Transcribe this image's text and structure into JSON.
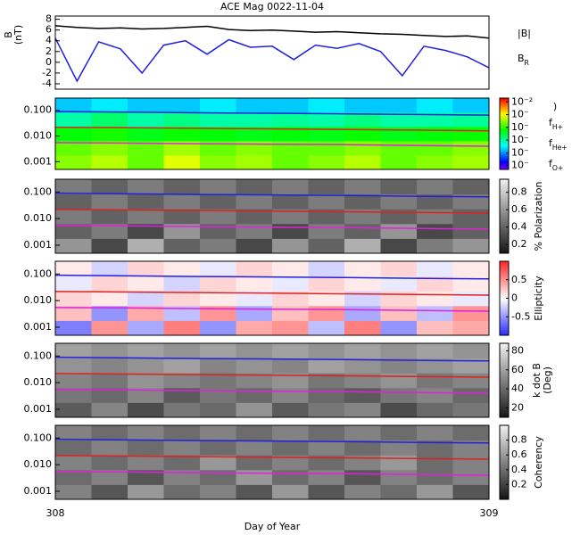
{
  "chart_data": [
    {
      "type": "line",
      "title": "ACE Mag 0022-11-04",
      "ylabel": [
        "B",
        "(nT)"
      ],
      "x": [
        308.0,
        308.05,
        308.1,
        308.15,
        308.2,
        308.25,
        308.3,
        308.35,
        308.4,
        308.45,
        308.5,
        308.55,
        308.6,
        308.65,
        308.7,
        308.75,
        308.8,
        308.85,
        308.9,
        308.95,
        309.0
      ],
      "xlim": [
        308,
        309
      ],
      "ylim": [
        -5,
        8.6
      ],
      "yticks": [
        -4,
        -2,
        0,
        2,
        4,
        6,
        8
      ],
      "series": [
        {
          "name": "|B|",
          "color": "#000000",
          "values": [
            6.8,
            6.5,
            6.3,
            6.4,
            6.2,
            6.3,
            6.5,
            6.7,
            6.1,
            5.9,
            6.0,
            5.8,
            5.6,
            5.7,
            5.5,
            5.3,
            5.2,
            5.0,
            4.8,
            4.9,
            4.5
          ]
        },
        {
          "name": "BR",
          "color": "#2020e0",
          "values": [
            4.5,
            -3.5,
            3.8,
            2.5,
            -2.0,
            3.2,
            4.0,
            1.5,
            4.2,
            2.8,
            3.0,
            0.5,
            3.2,
            2.6,
            3.5,
            2.0,
            -2.5,
            3.0,
            2.2,
            1.0,
            -1.0
          ]
        }
      ]
    },
    {
      "type": "heatmap",
      "colormap": "rainbow",
      "zlog": true,
      "zlim": [
        5e-08,
        0.02
      ],
      "zlabel": ")",
      "zticks": [
        {
          "value": 0.01,
          "label": "10⁻²"
        },
        {
          "value": 0.001,
          "label": "10⁻"
        },
        {
          "value": 0.0001,
          "label": "10⁻"
        },
        {
          "value": 1e-05,
          "label": "10⁻"
        },
        {
          "value": 1e-06,
          "label": "10⁻"
        },
        {
          "value": 1e-07,
          "label": "10⁻"
        }
      ],
      "xlim": [
        308,
        309
      ],
      "ylim": [
        0.0005,
        0.3
      ],
      "ylog": true,
      "legend": true,
      "yticks": [
        {
          "value": 0.001,
          "label": "0.001"
        },
        {
          "value": 0.01,
          "label": "0.010"
        },
        {
          "value": 0.1,
          "label": "0.100"
        }
      ],
      "z": [
        [
          0.0003,
          0.0005,
          0.0002,
          0.0008,
          0.0003,
          0.0004,
          0.0002,
          0.0003,
          0.0005,
          0.0002,
          0.0003,
          0.0004
        ],
        [
          0.0002,
          0.0003,
          0.0002,
          0.0004,
          0.0002,
          0.0003,
          0.0002,
          0.0002,
          0.0003,
          0.0002,
          0.0002,
          0.0003
        ],
        [
          6e-05,
          8e-05,
          5e-05,
          7e-05,
          6e-05,
          5e-05,
          6e-05,
          5e-05,
          7e-05,
          5e-05,
          6e-05,
          7e-05
        ],
        [
          1e-05,
          2e-05,
          1e-05,
          1.5e-05,
          1e-05,
          1e-05,
          1.2e-05,
          1e-05,
          1.5e-05,
          1e-05,
          1e-05,
          1.2e-05
        ],
        [
          2e-06,
          3e-06,
          2e-06,
          2e-06,
          3e-06,
          2e-06,
          2e-06,
          3e-06,
          2e-06,
          2e-06,
          3e-06,
          2e-06
        ]
      ],
      "x": [
        308.0,
        308.17,
        308.33,
        308.5,
        308.67,
        308.83,
        309.0
      ],
      "series": [
        {
          "name": "fH+",
          "color": "#2020e0",
          "values": [
            0.09,
            0.085,
            0.08,
            0.077,
            0.073,
            0.069,
            0.065
          ]
        },
        {
          "name": "fHe+",
          "color": "#e02020",
          "values": [
            0.022,
            0.021,
            0.02,
            0.019,
            0.018,
            0.017,
            0.016
          ]
        },
        {
          "name": "fO+",
          "color": "#e020e0",
          "values": [
            0.0055,
            0.0053,
            0.005,
            0.0048,
            0.0046,
            0.0043,
            0.004
          ]
        }
      ]
    },
    {
      "type": "heatmap",
      "colormap": "gray",
      "zlim": [
        0.1,
        0.95
      ],
      "zlabel": "% Polarization",
      "zticks": [
        0.2,
        0.4,
        0.6,
        0.8
      ],
      "xlim": [
        308,
        309
      ],
      "ylim": [
        0.0005,
        0.3
      ],
      "ylog": true,
      "yticks": [
        {
          "value": 0.001,
          "label": "0.001"
        },
        {
          "value": 0.01,
          "label": "0.010"
        },
        {
          "value": 0.1,
          "label": "0.100"
        }
      ],
      "z": [
        [
          0.6,
          0.3,
          0.7,
          0.4,
          0.5,
          0.3,
          0.6,
          0.4,
          0.7,
          0.3,
          0.5,
          0.6
        ],
        [
          0.4,
          0.5,
          0.3,
          0.6,
          0.4,
          0.5,
          0.3,
          0.5,
          0.4,
          0.6,
          0.3,
          0.4
        ],
        [
          0.5,
          0.4,
          0.5,
          0.4,
          0.5,
          0.4,
          0.5,
          0.4,
          0.5,
          0.4,
          0.5,
          0.4
        ],
        [
          0.4,
          0.5,
          0.4,
          0.5,
          0.4,
          0.5,
          0.4,
          0.5,
          0.4,
          0.5,
          0.4,
          0.5
        ],
        [
          0.5,
          0.4,
          0.5,
          0.4,
          0.5,
          0.4,
          0.5,
          0.4,
          0.5,
          0.4,
          0.5,
          0.4
        ]
      ],
      "x": [
        308.0,
        308.17,
        308.33,
        308.5,
        308.67,
        308.83,
        309.0
      ],
      "series": [
        {
          "name": "fH+",
          "color": "#2020e0",
          "values": [
            0.09,
            0.085,
            0.08,
            0.077,
            0.073,
            0.069,
            0.065
          ]
        },
        {
          "name": "fHe+",
          "color": "#e02020",
          "values": [
            0.022,
            0.021,
            0.02,
            0.019,
            0.018,
            0.017,
            0.016
          ]
        },
        {
          "name": "fO+",
          "color": "#e020e0",
          "values": [
            0.0055,
            0.0053,
            0.005,
            0.0048,
            0.0046,
            0.0043,
            0.004
          ]
        }
      ]
    },
    {
      "type": "heatmap",
      "colormap": "bwr",
      "zlim": [
        -1,
        1
      ],
      "zlabel": "Ellipticity",
      "zticks": [
        -0.5,
        0,
        0.5
      ],
      "xlim": [
        308,
        309
      ],
      "ylim": [
        0.0005,
        0.3
      ],
      "ylog": true,
      "yticks": [
        {
          "value": 0.001,
          "label": "0.001"
        },
        {
          "value": 0.01,
          "label": "0.010"
        },
        {
          "value": 0.1,
          "label": "0.100"
        }
      ],
      "z": [
        [
          -0.6,
          0.5,
          -0.4,
          0.6,
          -0.5,
          0.4,
          0.5,
          -0.3,
          0.6,
          -0.5,
          0.3,
          0.4
        ],
        [
          0.3,
          -0.5,
          0.4,
          -0.3,
          0.5,
          -0.4,
          0.3,
          0.5,
          -0.4,
          0.3,
          -0.3,
          0.5
        ],
        [
          0.2,
          0.1,
          -0.2,
          0.2,
          0.1,
          -0.1,
          0.2,
          0.1,
          -0.2,
          0.2,
          0.1,
          -0.1
        ],
        [
          -0.1,
          0.2,
          0.1,
          -0.2,
          0.2,
          0.1,
          -0.1,
          0.2,
          0.1,
          -0.1,
          0.2,
          0.1
        ],
        [
          0.1,
          -0.2,
          0.2,
          0.1,
          -0.1,
          0.2,
          0.1,
          -0.2,
          0.1,
          0.2,
          -0.1,
          0.1
        ]
      ],
      "x": [
        308.0,
        308.17,
        308.33,
        308.5,
        308.67,
        308.83,
        309.0
      ],
      "series": [
        {
          "name": "fH+",
          "color": "#2020e0",
          "values": [
            0.09,
            0.085,
            0.08,
            0.077,
            0.073,
            0.069,
            0.065
          ]
        },
        {
          "name": "fHe+",
          "color": "#e02020",
          "values": [
            0.022,
            0.021,
            0.02,
            0.019,
            0.018,
            0.017,
            0.016
          ]
        },
        {
          "name": "fO+",
          "color": "#e020e0",
          "values": [
            0.0055,
            0.0053,
            0.005,
            0.0048,
            0.0046,
            0.0043,
            0.004
          ]
        }
      ]
    },
    {
      "type": "heatmap",
      "colormap": "gray",
      "zlim": [
        10,
        88
      ],
      "zlabel": [
        "k dot B",
        "(Deg)"
      ],
      "zticks": [
        20,
        40,
        60,
        80
      ],
      "xlim": [
        308,
        309
      ],
      "ylim": [
        0.0005,
        0.3
      ],
      "ylog": true,
      "yticks": [
        {
          "value": 0.001,
          "label": "0.001"
        },
        {
          "value": 0.01,
          "label": "0.010"
        },
        {
          "value": 0.1,
          "label": "0.100"
        }
      ],
      "z": [
        [
          35,
          50,
          30,
          45,
          40,
          55,
          35,
          45,
          50,
          30,
          40,
          45
        ],
        [
          45,
          40,
          50,
          35,
          45,
          40,
          50,
          40,
          35,
          45,
          50,
          40
        ],
        [
          50,
          45,
          55,
          50,
          45,
          50,
          55,
          45,
          50,
          55,
          45,
          50
        ],
        [
          55,
          50,
          55,
          60,
          50,
          55,
          50,
          60,
          55,
          50,
          55,
          60
        ],
        [
          60,
          55,
          60,
          55,
          60,
          55,
          60,
          55,
          60,
          55,
          60,
          55
        ]
      ],
      "x": [
        308.0,
        308.17,
        308.33,
        308.5,
        308.67,
        308.83,
        309.0
      ],
      "series": [
        {
          "name": "fH+",
          "color": "#2020e0",
          "values": [
            0.09,
            0.085,
            0.08,
            0.077,
            0.073,
            0.069,
            0.065
          ]
        },
        {
          "name": "fHe+",
          "color": "#e02020",
          "values": [
            0.022,
            0.021,
            0.02,
            0.019,
            0.018,
            0.017,
            0.016
          ]
        },
        {
          "name": "fO+",
          "color": "#e020e0",
          "values": [
            0.0055,
            0.0053,
            0.005,
            0.0048,
            0.0046,
            0.0043,
            0.004
          ]
        }
      ]
    },
    {
      "type": "heatmap",
      "colormap": "gray",
      "zlim": [
        0,
        1
      ],
      "zlabel": "Coherency",
      "zticks": [
        0.2,
        0.4,
        0.6,
        0.8
      ],
      "xlim": [
        308,
        309
      ],
      "ylim": [
        0.0005,
        0.3
      ],
      "ylog": true,
      "xaxis": true,
      "yticks": [
        {
          "value": 0.001,
          "label": "0.001"
        },
        {
          "value": 0.01,
          "label": "0.010"
        },
        {
          "value": 0.1,
          "label": "0.100"
        }
      ],
      "xticks": [
        308,
        309
      ],
      "xlabel": "Day of Year",
      "z": [
        [
          0.5,
          0.3,
          0.6,
          0.4,
          0.5,
          0.3,
          0.6,
          0.3,
          0.5,
          0.4,
          0.6,
          0.3
        ],
        [
          0.4,
          0.5,
          0.3,
          0.5,
          0.4,
          0.6,
          0.4,
          0.5,
          0.3,
          0.5,
          0.4,
          0.5
        ],
        [
          0.5,
          0.4,
          0.5,
          0.4,
          0.6,
          0.4,
          0.5,
          0.4,
          0.5,
          0.6,
          0.4,
          0.5
        ],
        [
          0.4,
          0.5,
          0.4,
          0.5,
          0.4,
          0.5,
          0.4,
          0.5,
          0.4,
          0.5,
          0.4,
          0.5
        ],
        [
          0.5,
          0.4,
          0.5,
          0.4,
          0.5,
          0.4,
          0.5,
          0.4,
          0.5,
          0.4,
          0.5,
          0.4
        ]
      ],
      "x": [
        308.0,
        308.17,
        308.33,
        308.5,
        308.67,
        308.83,
        309.0
      ],
      "series": [
        {
          "name": "fH+",
          "color": "#2020e0",
          "values": [
            0.09,
            0.085,
            0.08,
            0.077,
            0.073,
            0.069,
            0.065
          ]
        },
        {
          "name": "fHe+",
          "color": "#e02020",
          "values": [
            0.022,
            0.021,
            0.02,
            0.019,
            0.018,
            0.017,
            0.016
          ]
        },
        {
          "name": "fO+",
          "color": "#e020e0",
          "values": [
            0.0055,
            0.0053,
            0.005,
            0.0048,
            0.0046,
            0.0043,
            0.004
          ]
        }
      ]
    }
  ]
}
